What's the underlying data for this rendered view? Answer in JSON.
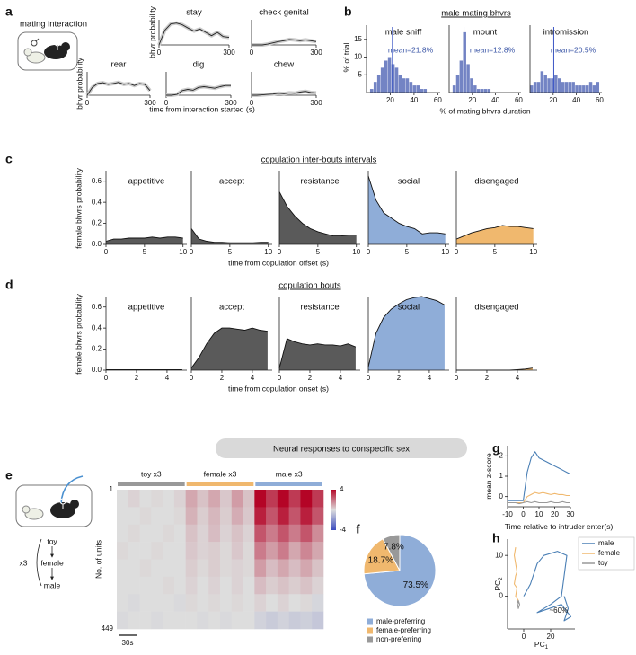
{
  "panel_letters": [
    "a",
    "b",
    "c",
    "d",
    "e",
    "f",
    "g",
    "h"
  ],
  "a": {
    "title": "mating interaction",
    "ylabel": "bhvr probability",
    "xlabel": "time from interaction started (s)"
  },
  "b": {
    "title": "male mating bhvrs",
    "ylabel": "% of trial",
    "xlabel": "% of mating bhvrs duration"
  },
  "c": {
    "title": "copulation inter-bouts intervals",
    "ylabel": "female bhvrs probability",
    "xlabel": "time from copulation offset (s)"
  },
  "d": {
    "title": "copulation bouts",
    "ylabel": "female bhvrs probability",
    "xlabel": "time from copulation onset (s)"
  },
  "e": {
    "banner": "Neural responses to conspecific sex",
    "sequence": [
      "toy",
      "female",
      "male"
    ],
    "repeat": "x3"
  },
  "chart_data": [
    {
      "type": "line",
      "title": "stay",
      "x": [
        0,
        25,
        50,
        75,
        100,
        125,
        150,
        175,
        200,
        225,
        250,
        275,
        300
      ],
      "values": [
        0,
        0.35,
        0.5,
        0.52,
        0.48,
        0.4,
        0.33,
        0.38,
        0.3,
        0.22,
        0.3,
        0.2,
        0.18
      ],
      "xlim": [
        0,
        300
      ],
      "xticks": [
        0,
        300
      ],
      "ylim": [
        0,
        0.6
      ],
      "color": "#222222"
    },
    {
      "type": "line",
      "title": "check genital",
      "x": [
        0,
        25,
        50,
        75,
        100,
        125,
        150,
        175,
        200,
        225,
        250,
        275,
        300
      ],
      "values": [
        0,
        0,
        0,
        0.02,
        0.05,
        0.08,
        0.1,
        0.13,
        0.12,
        0.1,
        0.12,
        0.1,
        0.08
      ],
      "xlim": [
        0,
        300
      ],
      "xticks": [
        0,
        300
      ],
      "ylim": [
        0,
        0.6
      ],
      "color": "#222222"
    },
    {
      "type": "line",
      "title": "rear",
      "x": [
        0,
        25,
        50,
        75,
        100,
        125,
        150,
        175,
        200,
        225,
        250,
        275,
        300
      ],
      "values": [
        0,
        0.2,
        0.3,
        0.32,
        0.28,
        0.3,
        0.33,
        0.28,
        0.3,
        0.25,
        0.3,
        0.28,
        0.12
      ],
      "xlim": [
        0,
        300
      ],
      "xticks": [
        0,
        300
      ],
      "ylim": [
        0,
        0.6
      ],
      "color": "#222222"
    },
    {
      "type": "line",
      "title": "dig",
      "x": [
        0,
        25,
        50,
        75,
        100,
        125,
        150,
        175,
        200,
        225,
        250,
        275,
        300
      ],
      "values": [
        0,
        0,
        0.02,
        0.12,
        0.15,
        0.13,
        0.2,
        0.22,
        0.2,
        0.18,
        0.22,
        0.25,
        0.25
      ],
      "xlim": [
        0,
        300
      ],
      "xticks": [
        0,
        300
      ],
      "ylim": [
        0,
        0.6
      ],
      "color": "#222222"
    },
    {
      "type": "line",
      "title": "chew",
      "x": [
        0,
        25,
        50,
        75,
        100,
        125,
        150,
        175,
        200,
        225,
        250,
        275,
        300
      ],
      "values": [
        0,
        0,
        0.01,
        0.02,
        0.03,
        0.05,
        0.04,
        0.06,
        0.05,
        0.08,
        0.1,
        0.07,
        0.06
      ],
      "xlim": [
        0,
        300
      ],
      "xticks": [
        0,
        300
      ],
      "ylim": [
        0,
        0.6
      ],
      "color": "#222222"
    },
    {
      "type": "histogram",
      "title": "male sniff",
      "mean": 21.8,
      "mean_label": "mean=21.8%",
      "bins": [
        0,
        3,
        6,
        9,
        12,
        15,
        18,
        21,
        24,
        27,
        30,
        33,
        36,
        39,
        42,
        45,
        48,
        51,
        54,
        57,
        60
      ],
      "values": [
        0,
        1,
        3,
        5,
        7,
        9,
        10,
        8,
        7,
        5,
        4,
        4,
        3,
        2,
        2,
        1,
        1,
        0,
        0,
        0
      ],
      "xlim": [
        0,
        62
      ],
      "xticks": [
        20,
        40,
        60
      ],
      "ylim": [
        0,
        19
      ],
      "yticks": [
        5,
        10,
        15
      ],
      "color": "#5a6fba"
    },
    {
      "type": "histogram",
      "title": "mount",
      "mean": 12.8,
      "mean_label": "mean=12.8%",
      "bins": [
        0,
        3,
        6,
        9,
        12,
        15,
        18,
        21,
        24,
        27,
        30,
        33,
        36,
        39,
        42,
        45,
        48,
        51,
        54,
        57,
        60
      ],
      "values": [
        0,
        2,
        5,
        9,
        17,
        8,
        4,
        2,
        1,
        1,
        1,
        1,
        0,
        0,
        0,
        0,
        0,
        0,
        0,
        0
      ],
      "xlim": [
        0,
        62
      ],
      "xticks": [
        20,
        40,
        60
      ],
      "ylim": [
        0,
        19
      ],
      "color": "#5a6fba"
    },
    {
      "type": "histogram",
      "title": "intromission",
      "mean": 20.5,
      "mean_label": "mean=20.5%",
      "bins": [
        0,
        3,
        6,
        9,
        12,
        15,
        18,
        21,
        24,
        27,
        30,
        33,
        36,
        39,
        42,
        45,
        48,
        51,
        54,
        57,
        60
      ],
      "values": [
        2,
        3,
        3,
        6,
        5,
        4,
        4,
        5,
        4,
        3,
        3,
        3,
        3,
        2,
        2,
        2,
        2,
        3,
        2,
        3
      ],
      "xlim": [
        0,
        62
      ],
      "xticks": [
        20,
        40,
        60
      ],
      "ylim": [
        0,
        19
      ],
      "color": "#5a6fba"
    },
    {
      "type": "area",
      "title": "appetitive",
      "x": [
        0,
        1,
        2,
        3,
        4,
        5,
        6,
        7,
        8,
        9,
        10
      ],
      "values": [
        0.03,
        0.05,
        0.05,
        0.06,
        0.06,
        0.06,
        0.07,
        0.06,
        0.07,
        0.07,
        0.06
      ],
      "xlim": [
        0,
        10.5
      ],
      "xticks": [
        0,
        5,
        10
      ],
      "ylim": [
        0,
        0.7
      ],
      "yticks": [
        {
          "value": 0,
          "label": "0.0"
        },
        0.2,
        0.4,
        0.6
      ],
      "color": "#5a5a5a"
    },
    {
      "type": "area",
      "title": "accept",
      "x": [
        0,
        1,
        2,
        3,
        4,
        5,
        6,
        7,
        8,
        9,
        10
      ],
      "values": [
        0.15,
        0.05,
        0.03,
        0.02,
        0.02,
        0.015,
        0.015,
        0.015,
        0.015,
        0.02,
        0.02
      ],
      "xlim": [
        0,
        10.5
      ],
      "xticks": [
        0,
        5,
        10
      ],
      "ylim": [
        0,
        0.7
      ],
      "color": "#5a5a5a"
    },
    {
      "type": "area",
      "title": "resistance",
      "x": [
        0,
        1,
        2,
        3,
        4,
        5,
        6,
        7,
        8,
        9,
        10
      ],
      "values": [
        0.5,
        0.36,
        0.27,
        0.2,
        0.15,
        0.12,
        0.1,
        0.08,
        0.08,
        0.09,
        0.09
      ],
      "xlim": [
        0,
        10.5
      ],
      "xticks": [
        0,
        5,
        10
      ],
      "ylim": [
        0,
        0.7
      ],
      "color": "#5a5a5a"
    },
    {
      "type": "area",
      "title": "social",
      "x": [
        0,
        1,
        2,
        3,
        4,
        5,
        6,
        7,
        8,
        9,
        10
      ],
      "values": [
        0.65,
        0.42,
        0.3,
        0.25,
        0.2,
        0.17,
        0.15,
        0.1,
        0.11,
        0.11,
        0.1
      ],
      "xlim": [
        0,
        10.5
      ],
      "xticks": [
        0,
        5,
        10
      ],
      "ylim": [
        0,
        0.7
      ],
      "color": "#8fadd8"
    },
    {
      "type": "area",
      "title": "disengaged",
      "x": [
        0,
        1,
        2,
        3,
        4,
        5,
        6,
        7,
        8,
        9,
        10
      ],
      "values": [
        0.05,
        0.08,
        0.11,
        0.13,
        0.15,
        0.16,
        0.18,
        0.17,
        0.17,
        0.16,
        0.15
      ],
      "xlim": [
        0,
        10.5
      ],
      "xticks": [
        0,
        5,
        10
      ],
      "ylim": [
        0,
        0.7
      ],
      "color": "#f0b86e"
    },
    {
      "type": "area",
      "title": "appetitive",
      "x": [
        0,
        0.5,
        1,
        1.5,
        2,
        2.5,
        3,
        3.5,
        4,
        4.5,
        5
      ],
      "values": [
        0.005,
        0.005,
        0.005,
        0.005,
        0.005,
        0.005,
        0.005,
        0.005,
        0.005,
        0.005,
        0.005
      ],
      "xlim": [
        0,
        5.3
      ],
      "xticks": [
        0,
        2,
        4
      ],
      "ylim": [
        0,
        0.7
      ],
      "yticks": [
        {
          "value": 0,
          "label": "0.0"
        },
        0.2,
        0.4,
        0.6
      ],
      "color": "#5a5a5a"
    },
    {
      "type": "area",
      "title": "accept",
      "x": [
        0,
        0.5,
        1,
        1.5,
        2,
        2.5,
        3,
        3.5,
        4,
        4.5,
        5
      ],
      "values": [
        0.02,
        0.12,
        0.25,
        0.35,
        0.4,
        0.4,
        0.39,
        0.38,
        0.4,
        0.38,
        0.37
      ],
      "xlim": [
        0,
        5.3
      ],
      "xticks": [
        0,
        2,
        4
      ],
      "ylim": [
        0,
        0.7
      ],
      "color": "#5a5a5a"
    },
    {
      "type": "area",
      "title": "resistance",
      "x": [
        0,
        0.5,
        1,
        1.5,
        2,
        2.5,
        3,
        3.5,
        4,
        4.5,
        5
      ],
      "values": [
        0.02,
        0.3,
        0.27,
        0.25,
        0.24,
        0.25,
        0.24,
        0.24,
        0.23,
        0.25,
        0.22
      ],
      "xlim": [
        0,
        5.3
      ],
      "xticks": [
        0,
        2,
        4
      ],
      "ylim": [
        0,
        0.7
      ],
      "color": "#5a5a5a"
    },
    {
      "type": "area",
      "title": "social",
      "x": [
        0,
        0.5,
        1,
        1.5,
        2,
        2.5,
        3,
        3.5,
        4,
        4.5,
        5
      ],
      "values": [
        0.03,
        0.35,
        0.5,
        0.58,
        0.63,
        0.67,
        0.69,
        0.7,
        0.68,
        0.66,
        0.62
      ],
      "xlim": [
        0,
        5.3
      ],
      "xticks": [
        0,
        2,
        4
      ],
      "ylim": [
        0,
        0.7
      ],
      "color": "#8fadd8"
    },
    {
      "type": "area",
      "title": "disengaged",
      "x": [
        0,
        0.5,
        1,
        1.5,
        2,
        2.5,
        3,
        3.5,
        4,
        4.5,
        5
      ],
      "values": [
        0,
        0,
        0,
        0,
        0,
        0,
        0,
        0,
        0.005,
        0.01,
        0.02
      ],
      "xlim": [
        0,
        5.3
      ],
      "xticks": [
        0,
        2,
        4
      ],
      "ylim": [
        0,
        0.7
      ],
      "color": "#f0b86e"
    },
    {
      "type": "heatmap",
      "ylabel": "No. of units",
      "ylim": [
        1,
        449
      ],
      "yticks": [
        1,
        449
      ],
      "groups": [
        "toy x3",
        "female x3",
        "male x3"
      ],
      "group_colors": [
        "#999999",
        "#f0b86e",
        "#8fadd8"
      ],
      "zlim": [
        -4,
        4
      ],
      "zticks": [
        -4,
        4
      ],
      "scalebar": "30s",
      "values": [
        [
          0,
          0.2,
          0,
          0.1,
          0,
          0.2,
          1,
          0.5,
          1,
          0.4,
          1.2,
          0.5,
          4,
          3,
          4,
          3,
          4,
          3
        ],
        [
          0,
          0,
          0.1,
          0,
          0,
          0.1,
          0.8,
          0.3,
          0.7,
          0.3,
          0.9,
          0.4,
          3.5,
          2.5,
          3.5,
          2.5,
          3.5,
          2.5
        ],
        [
          0,
          0.1,
          0,
          0,
          0.1,
          0,
          0.5,
          0.2,
          0.6,
          0.2,
          0.5,
          0.2,
          2.5,
          1.8,
          2.5,
          1.8,
          2.5,
          1.5
        ],
        [
          0.1,
          0,
          0,
          0.1,
          0,
          0,
          0.4,
          0.2,
          0.3,
          0.1,
          0.4,
          0.1,
          1.8,
          1.2,
          1.8,
          1,
          1.6,
          1
        ],
        [
          0,
          0,
          0.1,
          0,
          0,
          0,
          0.3,
          0.1,
          0.3,
          0.1,
          0.2,
          0.1,
          1.2,
          0.6,
          1,
          0.6,
          1,
          0.5
        ],
        [
          0,
          0,
          0,
          0,
          0.1,
          0,
          0.2,
          0,
          0.2,
          0,
          0.2,
          0,
          0.6,
          0.3,
          0.5,
          0.3,
          0.5,
          0.2
        ],
        [
          0,
          -0.1,
          0,
          0,
          0,
          -0.1,
          0.1,
          0,
          0.1,
          0,
          0.1,
          0,
          0.2,
          0,
          0.2,
          0,
          0.1,
          -0.2
        ],
        [
          -0.1,
          0,
          0,
          -0.1,
          0,
          0,
          0,
          -0.1,
          0,
          -0.1,
          0,
          0,
          -0.3,
          -0.5,
          -0.3,
          -0.5,
          -0.4,
          -0.6
        ]
      ]
    },
    {
      "type": "pie",
      "categories": [
        "male-preferring",
        "female-preferring",
        "non-preferring"
      ],
      "values": [
        73.5,
        18.7,
        7.8
      ],
      "value_labels": [
        "73.5%",
        "18.7%",
        "7.8%"
      ],
      "colors": [
        "#8fadd8",
        "#f0b86e",
        "#999999"
      ]
    },
    {
      "type": "line",
      "ylabel": "mean z-score",
      "xlabel": "Time relative to intruder enter(s)",
      "x": [
        -10,
        -7.5,
        -5,
        -2.5,
        0,
        2.5,
        5,
        7.5,
        10,
        12.5,
        15,
        17.5,
        20,
        22.5,
        25,
        27.5,
        30
      ],
      "xlim": [
        -10,
        30
      ],
      "xticks": [
        -10,
        0,
        10,
        20,
        30
      ],
      "ylim": [
        -0.5,
        2.5
      ],
      "yticks": [
        0,
        1,
        2
      ],
      "series": [
        {
          "color": "#4a7fb5",
          "values": [
            -0.2,
            -0.2,
            -0.2,
            -0.2,
            -0.2,
            1.2,
            1.9,
            2.2,
            1.9,
            1.8,
            1.7,
            1.6,
            1.5,
            1.4,
            1.3,
            1.2,
            1.1
          ]
        },
        {
          "color": "#f0b86e",
          "values": [
            -0.3,
            -0.3,
            -0.3,
            -0.3,
            -0.3,
            0,
            0.1,
            0.2,
            0.15,
            0.2,
            0.15,
            0.1,
            0.15,
            0.1,
            0.1,
            0.05,
            0.05
          ]
        },
        {
          "color": "#999999",
          "values": [
            -0.3,
            -0.3,
            -0.3,
            -0.35,
            -0.3,
            -0.25,
            -0.3,
            -0.25,
            -0.3,
            -0.3,
            -0.3,
            -0.25,
            -0.3,
            -0.3,
            -0.25,
            -0.3,
            -0.3
          ]
        }
      ]
    },
    {
      "type": "line",
      "xlabel": "PC",
      "xlabel_subscript": "1",
      "ylabel": "PC",
      "ylabel_subscript": "2",
      "annotation": "~60%",
      "xlim": [
        -12,
        38
      ],
      "xticks": [
        0,
        20
      ],
      "ylim": [
        -8,
        14
      ],
      "yticks": [
        0,
        10
      ],
      "series": [
        {
          "name": "male",
          "color": "#4a7fb5",
          "x": [
            0,
            5,
            10,
            15,
            25,
            32,
            30,
            28,
            20,
            10,
            28,
            35,
            30,
            33,
            30
          ],
          "values": [
            0,
            3,
            8,
            10,
            11,
            10,
            5,
            0,
            -2,
            -4,
            -2,
            -5,
            -6,
            -3,
            0
          ]
        },
        {
          "name": "female",
          "color": "#f0b86e",
          "x": [
            -6,
            -7,
            -6,
            -5,
            -6,
            -7,
            -5,
            -6,
            -4,
            -5
          ],
          "values": [
            12,
            10,
            8,
            6,
            5,
            3,
            2,
            0,
            -1,
            -2
          ]
        },
        {
          "name": "toy",
          "color": "#999999",
          "x": [
            -4,
            -3,
            -5,
            -4,
            -3,
            -4
          ],
          "values": [
            -1,
            -2,
            -1,
            -3,
            -2,
            -1
          ]
        }
      ]
    }
  ]
}
